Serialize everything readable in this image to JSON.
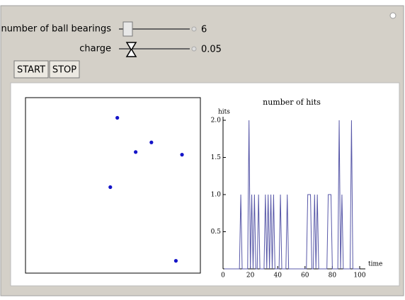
{
  "controls": {
    "sliders": [
      {
        "label": "number of ball bearings",
        "value": "6"
      },
      {
        "label": "charge",
        "value": "0.05"
      }
    ],
    "buttons": [
      "START",
      "STOP"
    ]
  },
  "chart_data": [
    {
      "type": "scatter",
      "color": "#1414c8",
      "xlim": [
        -1,
        1
      ],
      "ylim": [
        -1,
        1
      ],
      "x": [
        0.05,
        0.26,
        0.44,
        0.79,
        -0.03,
        0.72
      ],
      "y": [
        0.77,
        0.38,
        0.49,
        0.35,
        -0.02,
        -0.86
      ]
    },
    {
      "type": "line",
      "title": "number of hits",
      "x_label": "time",
      "y_label": "hits",
      "color": "#5858a8",
      "xlim": [
        0,
        100
      ],
      "ylim": [
        0,
        2
      ],
      "xticks": [
        0,
        20,
        40,
        60,
        80,
        100
      ],
      "yticks": [
        0.5,
        {
          "value": 1,
          "label": "1.0"
        },
        1.5,
        {
          "value": 2,
          "label": "2.0"
        }
      ],
      "x": [
        1,
        2,
        3,
        4,
        5,
        6,
        7,
        8,
        9,
        10,
        11,
        12,
        13,
        14,
        15,
        16,
        17,
        18,
        19,
        20,
        21,
        22,
        23,
        24,
        25,
        26,
        27,
        28,
        29,
        30,
        31,
        32,
        33,
        34,
        35,
        36,
        37,
        38,
        39,
        40,
        41,
        42,
        43,
        44,
        45,
        46,
        47,
        48,
        49,
        50,
        51,
        52,
        53,
        54,
        55,
        56,
        57,
        58,
        59,
        60,
        61,
        62,
        63,
        64,
        65,
        66,
        67,
        68,
        69,
        70,
        71,
        72,
        73,
        74,
        75,
        76,
        77,
        78,
        79,
        80,
        81,
        82,
        83,
        84,
        85,
        86,
        87,
        88,
        89,
        90,
        91,
        92,
        93,
        94,
        95,
        96,
        97,
        98,
        99,
        100
      ],
      "values": [
        0,
        0,
        0,
        0,
        0,
        0,
        0,
        0,
        0,
        0,
        0,
        0,
        1,
        0,
        0,
        0,
        0,
        0,
        2,
        0,
        1,
        0,
        1,
        0,
        0,
        1,
        0,
        0,
        0,
        0,
        1,
        0,
        1,
        0,
        1,
        0,
        1,
        0,
        0,
        0,
        0,
        1,
        0,
        0,
        0,
        0,
        1,
        0,
        0,
        0,
        0,
        0,
        0,
        0,
        0,
        0,
        0,
        0,
        0,
        0,
        0,
        1,
        1,
        1,
        0,
        0,
        1,
        0,
        1,
        0,
        0,
        0,
        0,
        0,
        0,
        0,
        1,
        1,
        1,
        0,
        0,
        0,
        0,
        0,
        2,
        0,
        1,
        0,
        0,
        0,
        0,
        0,
        0,
        2,
        0,
        0,
        0,
        0,
        0,
        0
      ]
    }
  ]
}
